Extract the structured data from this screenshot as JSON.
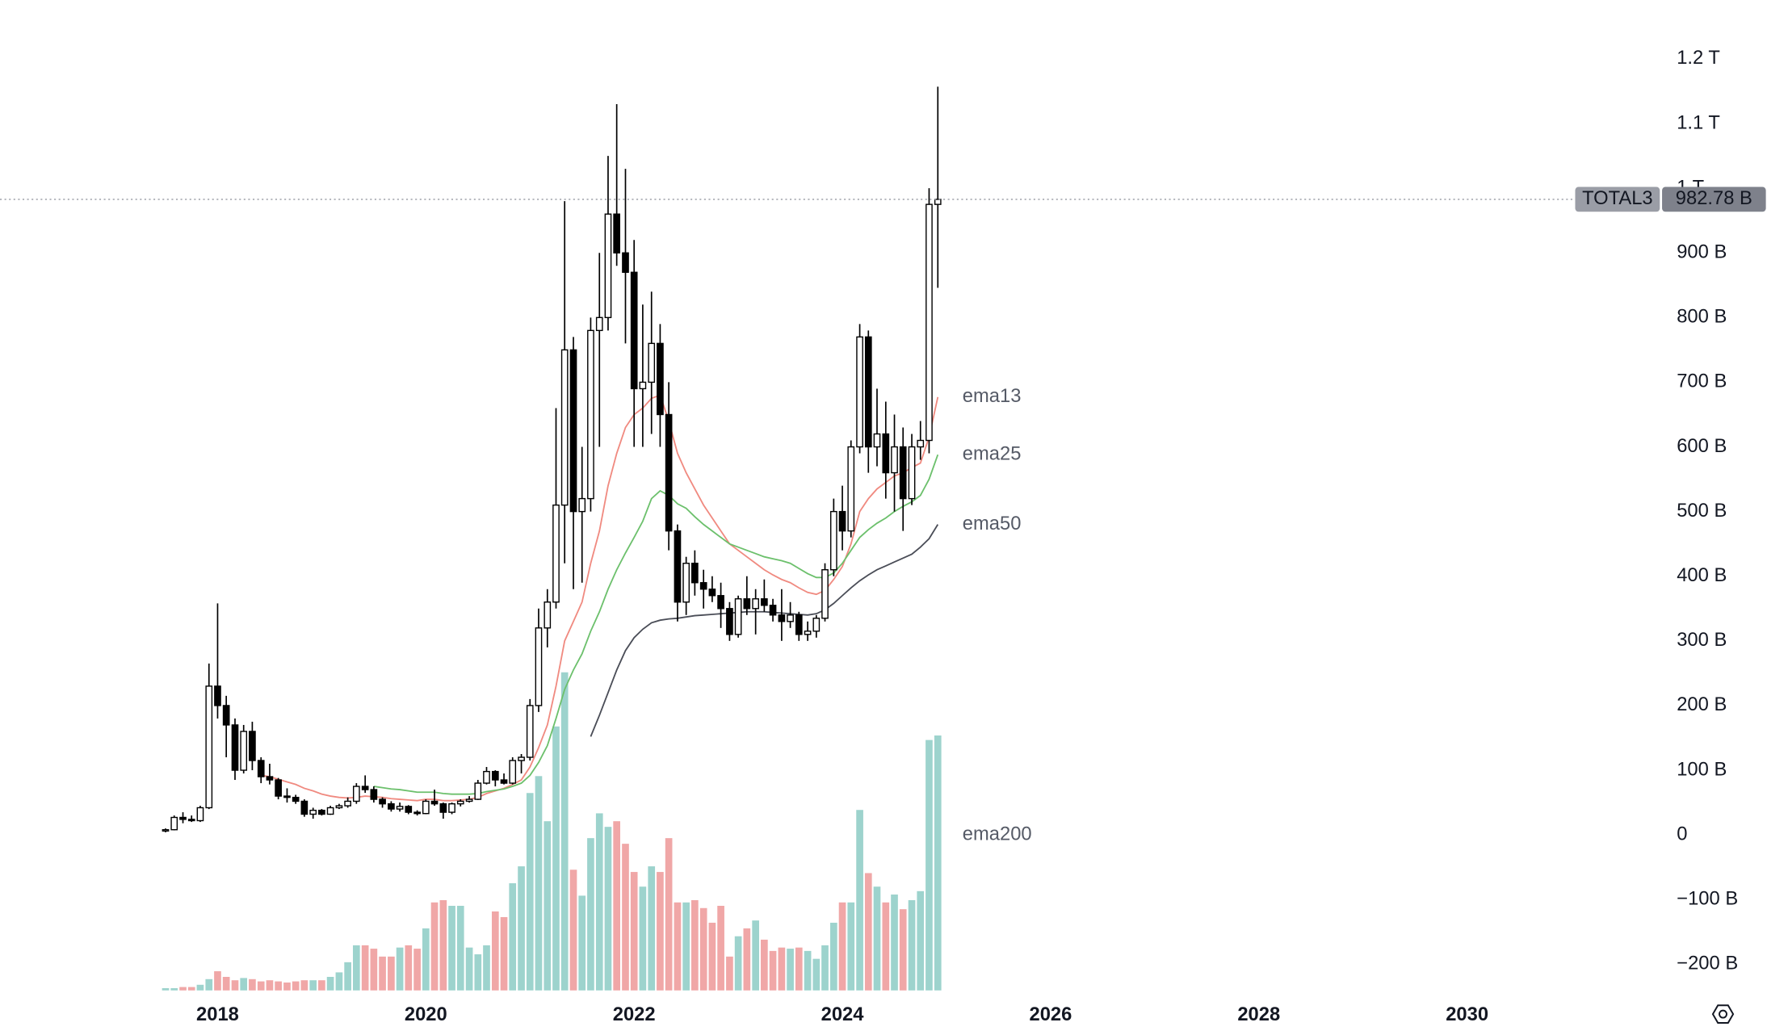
{
  "chart_data": {
    "type": "candlestick",
    "symbol": "TOTAL3",
    "x": [
      2017.5,
      2017.583,
      2017.667,
      2017.75,
      2017.833,
      2017.917,
      2018,
      2018.083,
      2018.167,
      2018.25,
      2018.333,
      2018.417,
      2018.5,
      2018.583,
      2018.667,
      2018.75,
      2018.833,
      2018.917,
      2019,
      2019.083,
      2019.167,
      2019.25,
      2019.333,
      2019.417,
      2019.5,
      2019.583,
      2019.667,
      2019.75,
      2019.833,
      2019.917,
      2020,
      2020.083,
      2020.167,
      2020.25,
      2020.333,
      2020.417,
      2020.5,
      2020.583,
      2020.667,
      2020.75,
      2020.833,
      2020.917,
      2021,
      2021.083,
      2021.167,
      2021.25,
      2021.333,
      2021.417,
      2021.5,
      2021.583,
      2021.667,
      2021.75,
      2021.833,
      2021.917,
      2022,
      2022.083,
      2022.167,
      2022.25,
      2022.333,
      2022.417,
      2022.5,
      2022.583,
      2022.667,
      2022.75,
      2022.833,
      2022.917,
      2023,
      2023.083,
      2023.167,
      2023.25,
      2023.333,
      2023.417,
      2023.5,
      2023.583,
      2023.667,
      2023.75,
      2023.833,
      2023.917,
      2024,
      2024.083,
      2024.167,
      2024.25,
      2024.333,
      2024.417,
      2024.5,
      2024.583,
      2024.667,
      2024.75,
      2024.833,
      2024.917
    ],
    "open": [
      6,
      8,
      27,
      24,
      22,
      42,
      230,
      200,
      170,
      100,
      160,
      115,
      90,
      85,
      60,
      58,
      52,
      32,
      38,
      32,
      42,
      45,
      52,
      75,
      70,
      55,
      48,
      40,
      44,
      35,
      33,
      52,
      48,
      35,
      48,
      52,
      55,
      80,
      98,
      85,
      80,
      115,
      120,
      200,
      320,
      360,
      510,
      750,
      500,
      520,
      780,
      800,
      960,
      900,
      870,
      690,
      700,
      760,
      650,
      470,
      360,
      420,
      390,
      380,
      370,
      350,
      310,
      365,
      350,
      365,
      355,
      340,
      330,
      340,
      310,
      315,
      335,
      410,
      500,
      470,
      600,
      770,
      600,
      620,
      560,
      600,
      520,
      600,
      610,
      975
    ],
    "high": [
      10,
      30,
      35,
      30,
      45,
      265,
      358,
      215,
      180,
      170,
      175,
      120,
      110,
      88,
      72,
      62,
      55,
      42,
      40,
      45,
      48,
      58,
      80,
      92,
      75,
      58,
      52,
      50,
      46,
      38,
      55,
      70,
      50,
      50,
      55,
      60,
      85,
      105,
      100,
      95,
      120,
      125,
      210,
      350,
      380,
      660,
      980,
      770,
      600,
      800,
      900,
      1050,
      1130,
      1030,
      920,
      820,
      840,
      790,
      700,
      480,
      430,
      440,
      410,
      400,
      390,
      360,
      370,
      400,
      380,
      395,
      365,
      380,
      360,
      345,
      330,
      340,
      420,
      520,
      540,
      610,
      790,
      780,
      690,
      670,
      650,
      630,
      620,
      640,
      1000,
      1157
    ],
    "low": [
      4,
      7,
      18,
      20,
      20,
      40,
      180,
      120,
      85,
      95,
      100,
      80,
      78,
      55,
      50,
      48,
      28,
      25,
      30,
      31,
      40,
      42,
      48,
      65,
      50,
      42,
      36,
      36,
      32,
      30,
      32,
      45,
      25,
      32,
      44,
      50,
      54,
      78,
      75,
      78,
      78,
      95,
      115,
      190,
      290,
      350,
      420,
      380,
      390,
      500,
      600,
      780,
      880,
      760,
      600,
      600,
      620,
      600,
      440,
      330,
      340,
      370,
      350,
      360,
      320,
      300,
      305,
      340,
      310,
      345,
      330,
      300,
      320,
      300,
      300,
      305,
      330,
      400,
      440,
      460,
      590,
      560,
      570,
      520,
      500,
      470,
      510,
      580,
      590,
      846
    ],
    "close": [
      8,
      27,
      24,
      22,
      42,
      230,
      200,
      170,
      100,
      160,
      115,
      90,
      85,
      60,
      58,
      52,
      32,
      38,
      32,
      42,
      45,
      52,
      75,
      70,
      55,
      48,
      40,
      44,
      35,
      33,
      52,
      48,
      35,
      48,
      52,
      55,
      80,
      98,
      85,
      80,
      115,
      120,
      200,
      320,
      360,
      510,
      750,
      500,
      520,
      780,
      800,
      960,
      900,
      870,
      690,
      700,
      760,
      650,
      470,
      360,
      420,
      390,
      380,
      370,
      350,
      310,
      365,
      350,
      365,
      355,
      340,
      330,
      340,
      310,
      315,
      335,
      410,
      500,
      470,
      600,
      770,
      600,
      620,
      560,
      600,
      520,
      600,
      610,
      975,
      982.78
    ],
    "up_color": "#ffffff",
    "down_color": "#000000",
    "volume": [
      2,
      2,
      3,
      3,
      5,
      10,
      17,
      12,
      9,
      11,
      10,
      8,
      9,
      8,
      7,
      8,
      9,
      9,
      9,
      12,
      16,
      25,
      40,
      40,
      37,
      30,
      30,
      38,
      40,
      37,
      55,
      78,
      80,
      75,
      75,
      38,
      32,
      40,
      70,
      65,
      95,
      110,
      175,
      190,
      150,
      234,
      282,
      107,
      84,
      135,
      157,
      145,
      150,
      130,
      105,
      92,
      110,
      105,
      135,
      78,
      78,
      80,
      73,
      60,
      75,
      30,
      48,
      55,
      62,
      45,
      35,
      38,
      37,
      38,
      35,
      28,
      40,
      60,
      78,
      78,
      160,
      104,
      92,
      78,
      85,
      72,
      80,
      88,
      222,
      226
    ],
    "volume_up_color": "#9dd3cd",
    "volume_down_color": "#f0a7a7",
    "vlim": [
      0,
      300
    ],
    "series": [
      {
        "name": "ema13",
        "color": "#f08a80",
        "values": [
          null,
          null,
          null,
          null,
          null,
          null,
          null,
          null,
          null,
          null,
          null,
          92,
          90,
          86,
          82,
          78,
          72,
          68,
          63,
          60,
          58,
          57,
          58,
          60,
          59,
          58,
          56,
          55,
          54,
          53,
          55,
          55,
          53,
          53,
          54,
          55,
          58,
          64,
          68,
          72,
          78,
          85,
          105,
          135,
          170,
          230,
          300,
          330,
          360,
          420,
          470,
          540,
          590,
          630,
          650,
          660,
          675,
          680,
          640,
          590,
          560,
          535,
          510,
          490,
          470,
          450,
          440,
          430,
          420,
          410,
          402,
          395,
          390,
          382,
          375,
          372,
          378,
          395,
          415,
          450,
          500,
          520,
          535,
          545,
          555,
          560,
          568,
          575,
          615,
          677
        ]
      },
      {
        "name": "ema25",
        "color": "#6cc06c",
        "values": [
          null,
          null,
          null,
          null,
          null,
          null,
          null,
          null,
          null,
          null,
          null,
          null,
          null,
          null,
          null,
          null,
          null,
          null,
          null,
          null,
          null,
          null,
          null,
          null,
          75,
          73,
          71,
          70,
          68,
          66,
          66,
          66,
          64,
          63,
          63,
          63,
          64,
          67,
          69,
          71,
          75,
          80,
          92,
          112,
          138,
          180,
          225,
          255,
          280,
          315,
          345,
          380,
          410,
          436,
          460,
          485,
          520,
          532,
          525,
          512,
          505,
          492,
          480,
          470,
          460,
          450,
          445,
          440,
          435,
          430,
          427,
          424,
          420,
          412,
          404,
          398,
          398,
          405,
          420,
          440,
          460,
          472,
          482,
          490,
          500,
          508,
          515,
          525,
          550,
          588
        ]
      },
      {
        "name": "ema50",
        "color": "#4a4d57",
        "values": [
          null,
          null,
          null,
          null,
          null,
          null,
          null,
          null,
          null,
          null,
          null,
          null,
          null,
          null,
          null,
          null,
          null,
          null,
          null,
          null,
          null,
          null,
          null,
          null,
          null,
          null,
          null,
          null,
          null,
          null,
          null,
          null,
          null,
          null,
          null,
          null,
          null,
          null,
          null,
          null,
          null,
          null,
          null,
          null,
          null,
          null,
          null,
          null,
          null,
          152,
          185,
          220,
          255,
          285,
          305,
          318,
          328,
          332,
          334,
          335,
          337,
          339,
          340,
          341,
          342,
          343,
          344,
          345,
          345,
          345,
          344,
          343,
          342,
          341,
          340,
          342,
          348,
          358,
          370,
          382,
          393,
          402,
          410,
          416,
          422,
          428,
          434,
          445,
          458,
          480
        ]
      }
    ],
    "annotations": [
      {
        "text": "ema200",
        "y": 0
      }
    ],
    "last_price": {
      "value": 982.78,
      "label": "982.78 B"
    },
    "xlim": [
      2015.91,
      2031.84
    ],
    "xticks": [
      2018,
      2020,
      2022,
      2024,
      2026,
      2028,
      2030
    ],
    "ylim": [
      -244,
      1291
    ],
    "yticks": [
      {
        "value": -200,
        "label": "−200 B"
      },
      {
        "value": -100,
        "label": "−100 B"
      },
      0,
      {
        "value": 100,
        "label": "100 B"
      },
      {
        "value": 200,
        "label": "200 B"
      },
      {
        "value": 300,
        "label": "300 B"
      },
      {
        "value": 400,
        "label": "400 B"
      },
      {
        "value": 500,
        "label": "500 B"
      },
      {
        "value": 600,
        "label": "600 B"
      },
      {
        "value": 700,
        "label": "700 B"
      },
      {
        "value": 800,
        "label": "800 B"
      },
      {
        "value": 900,
        "label": "900 B"
      },
      {
        "value": 1000,
        "label": "1 T"
      },
      {
        "value": 1100,
        "label": "1.1 T"
      },
      {
        "value": 1200,
        "label": "1.2 T"
      }
    ]
  }
}
